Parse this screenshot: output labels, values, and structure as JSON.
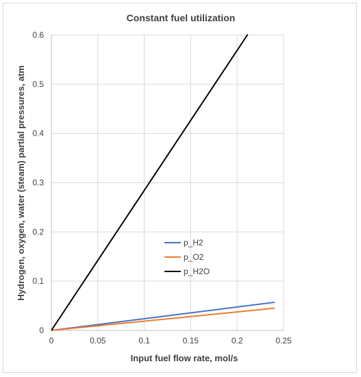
{
  "chart_data": {
    "type": "line",
    "title": "Constant fuel utilization",
    "xlabel": "Input fuel flow rate, mol/s",
    "ylabel": "Hydrogen, oxygen, water (steam) partial pressures, atm",
    "xlim": [
      0,
      0.25
    ],
    "ylim": [
      0,
      0.6
    ],
    "xticks": [
      0,
      0.05,
      0.1,
      0.15,
      0.2,
      0.25
    ],
    "xtick_labels": [
      "0",
      "0.05",
      "0.1",
      "0.15",
      "0.2",
      "0.25"
    ],
    "yticks": [
      0,
      0.1,
      0.2,
      0.3,
      0.4,
      0.5,
      0.6
    ],
    "ytick_labels": [
      "0",
      "0.1",
      "0.2",
      "0.3",
      "0.4",
      "0.5",
      "0.6"
    ],
    "grid": true,
    "legend_position": "center",
    "series": [
      {
        "name": "p_H2",
        "color": "#4472c4",
        "x": [
          0,
          0.24
        ],
        "y": [
          0,
          0.057
        ]
      },
      {
        "name": "p_O2",
        "color": "#ed7d31",
        "x": [
          0,
          0.24
        ],
        "y": [
          0,
          0.045
        ]
      },
      {
        "name": "p_H2O",
        "color": "#000000",
        "x": [
          0,
          0.211
        ],
        "y": [
          0,
          0.6
        ]
      }
    ]
  }
}
